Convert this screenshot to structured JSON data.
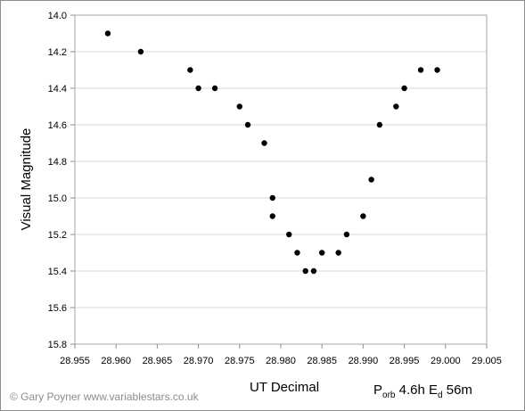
{
  "chart_data": {
    "type": "scatter",
    "title": "",
    "xlabel": "UT Decimal",
    "ylabel": "Visual Magnitude",
    "xlim": [
      28.955,
      29.005
    ],
    "ylim": [
      14.0,
      15.8
    ],
    "y_inverted": true,
    "x_ticks": [
      "28.955",
      "28.960",
      "28.965",
      "28.970",
      "28.975",
      "28.980",
      "28.985",
      "28.990",
      "28.995",
      "29.000",
      "29.005"
    ],
    "y_ticks": [
      "14.0",
      "14.2",
      "14.4",
      "14.6",
      "14.8",
      "15.0",
      "15.2",
      "15.4",
      "15.6",
      "15.8"
    ],
    "grid": "horizontal",
    "legend": "none",
    "marker_color": "#000000",
    "series": [
      {
        "points": [
          [
            28.959,
            14.1
          ],
          [
            28.963,
            14.2
          ],
          [
            28.969,
            14.3
          ],
          [
            28.97,
            14.4
          ],
          [
            28.972,
            14.4
          ],
          [
            28.975,
            14.5
          ],
          [
            28.976,
            14.6
          ],
          [
            28.978,
            14.7
          ],
          [
            28.979,
            15.0
          ],
          [
            28.979,
            15.1
          ],
          [
            28.981,
            15.2
          ],
          [
            28.982,
            15.3
          ],
          [
            28.983,
            15.4
          ],
          [
            28.984,
            15.4
          ],
          [
            28.985,
            15.3
          ],
          [
            28.987,
            15.3
          ],
          [
            28.988,
            15.2
          ],
          [
            28.99,
            15.1
          ],
          [
            28.991,
            14.9
          ],
          [
            28.992,
            14.6
          ],
          [
            28.994,
            14.5
          ],
          [
            28.995,
            14.4
          ],
          [
            28.997,
            14.3
          ],
          [
            28.999,
            14.3
          ]
        ]
      }
    ]
  },
  "footer": {
    "credit": "© Gary Poyner  www.variablestars.co.uk",
    "porb_symbol": "P",
    "porb_sub": "orb",
    "porb_value": " 4.6h  ",
    "ed_symbol": "E",
    "ed_sub": "d",
    "ed_value": " 56m"
  }
}
